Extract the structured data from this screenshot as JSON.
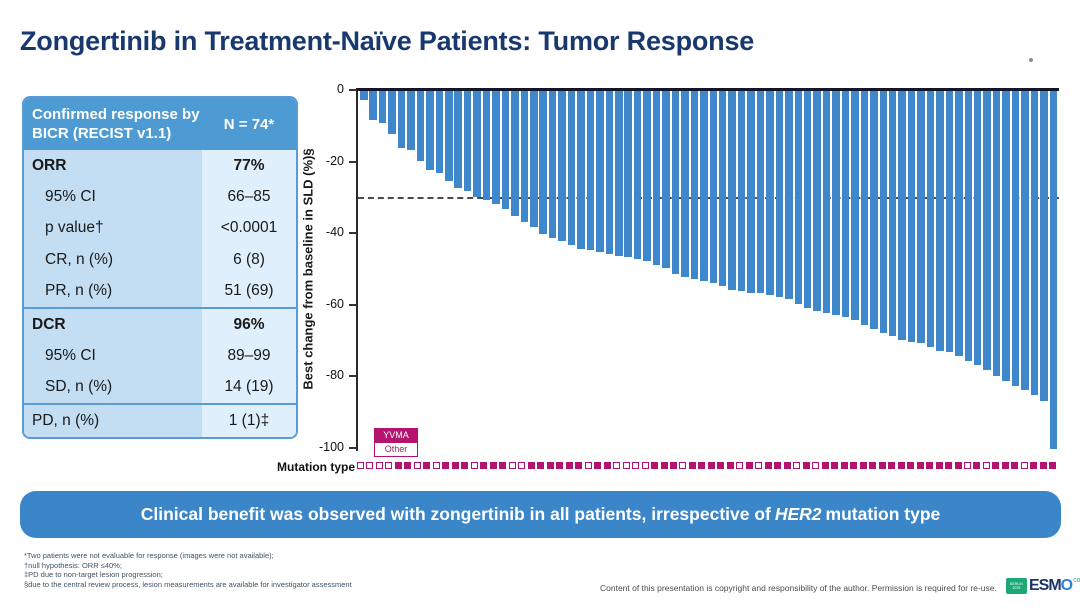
{
  "title": "Zongertinib in Treatment-Naïve Patients: Tumor Response",
  "table": {
    "header": {
      "label": "Confirmed response by BICR (RECIST v1.1)",
      "value": "N = 74*"
    },
    "rows": [
      {
        "label": "ORR",
        "value": "77%",
        "bold": true,
        "indent": false,
        "divider": false
      },
      {
        "label": "95% CI",
        "value": "66–85",
        "bold": false,
        "indent": true,
        "divider": false
      },
      {
        "label": "p value†",
        "value": "<0.0001",
        "bold": false,
        "indent": true,
        "divider": false
      },
      {
        "label": "CR, n (%)",
        "value": "6 (8)",
        "bold": false,
        "indent": true,
        "divider": false
      },
      {
        "label": "PR, n (%)",
        "value": "51 (69)",
        "bold": false,
        "indent": true,
        "divider": false
      },
      {
        "label": "DCR",
        "value": "96%",
        "bold": true,
        "indent": false,
        "divider": true
      },
      {
        "label": "95% CI",
        "value": "89–99",
        "bold": false,
        "indent": true,
        "divider": false
      },
      {
        "label": "SD, n (%)",
        "value": "14 (19)",
        "bold": false,
        "indent": true,
        "divider": false
      },
      {
        "label": "PD, n (%)",
        "value": "1 (1)‡",
        "bold": false,
        "indent": false,
        "divider": true
      }
    ]
  },
  "chart_data": {
    "type": "bar",
    "title": "",
    "xlabel": "",
    "ylabel": "Best change from baseline in SLD (%)§",
    "ylim": [
      -100,
      0
    ],
    "yticks": [
      0,
      -20,
      -40,
      -60,
      -80,
      -100
    ],
    "reference_line": -30,
    "bar_color": "#3e87cb",
    "x_axis_label": "Mutation type",
    "legend": [
      {
        "label": "YVMA",
        "fill": true
      },
      {
        "label": "Other",
        "fill": false
      }
    ],
    "values": [
      -2.5,
      -8,
      -9,
      -12,
      -16,
      -16.5,
      -19.5,
      -22,
      -23,
      -25,
      -27,
      -28,
      -29.5,
      -30.5,
      -31.5,
      -33,
      -35,
      -36.5,
      -38,
      -40,
      -41,
      -42,
      -43,
      -44,
      -44.5,
      -45,
      -45.5,
      -46,
      -46.5,
      -47,
      -47.5,
      -48.5,
      -49.5,
      -51,
      -52,
      -52.5,
      -53,
      -53.5,
      -54.5,
      -55.5,
      -56,
      -56.5,
      -56.5,
      -57,
      -57.5,
      -58,
      -59.5,
      -60.5,
      -61.5,
      -62,
      -62.5,
      -63,
      -64,
      -65.5,
      -66.5,
      -67.5,
      -68.5,
      -69.5,
      -70,
      -70.5,
      -71.5,
      -72.5,
      -73,
      -74,
      -75.5,
      -76.5,
      -78,
      -79.5,
      -81,
      -82.5,
      -83.5,
      -85,
      -86.5,
      -100
    ],
    "mutation_type": [
      "Other",
      "Other",
      "Other",
      "Other",
      "YVMA",
      "YVMA",
      "Other",
      "YVMA",
      "Other",
      "YVMA",
      "YVMA",
      "YVMA",
      "Other",
      "YVMA",
      "YVMA",
      "YVMA",
      "Other",
      "Other",
      "YVMA",
      "YVMA",
      "YVMA",
      "YVMA",
      "YVMA",
      "YVMA",
      "Other",
      "YVMA",
      "YVMA",
      "Other",
      "Other",
      "Other",
      "Other",
      "YVMA",
      "YVMA",
      "YVMA",
      "Other",
      "YVMA",
      "YVMA",
      "YVMA",
      "YVMA",
      "YVMA",
      "Other",
      "YVMA",
      "Other",
      "YVMA",
      "YVMA",
      "YVMA",
      "Other",
      "YVMA",
      "Other",
      "YVMA",
      "YVMA",
      "YVMA",
      "YVMA",
      "YVMA",
      "YVMA",
      "YVMA",
      "YVMA",
      "YVMA",
      "YVMA",
      "YVMA",
      "YVMA",
      "YVMA",
      "YVMA",
      "YVMA",
      "Other",
      "YVMA",
      "Other",
      "YVMA",
      "YVMA",
      "YVMA",
      "Other",
      "YVMA",
      "YVMA",
      "YVMA"
    ]
  },
  "banner": {
    "part1": "Clinical benefit was observed with zongertinib in all patients, irrespective of",
    "gene": "HER2",
    "part2": "mutation type"
  },
  "footnotes": [
    "*Two patients were not evaluable for response (images were not available);",
    "†null hypothesis: ORR ≤40%;",
    "‡PD due to non-target lesion progression;",
    "§due to the central review process, lesion measurements are available for investigator assessment"
  ],
  "footer": {
    "copyright": "Content of this presentation is copyright and responsibility of the author. Permission is required for re-use.",
    "logo_box": "BERLIN 2025",
    "logo_esm": "ESM",
    "logo_o": "O",
    "logo_congress": "congress"
  },
  "colors": {
    "title_navy": "#19396e",
    "table_header_blue": "#4e9ad3",
    "bar_blue": "#3e87cb",
    "banner_blue": "#3b86c9",
    "magenta": "#b5146e"
  }
}
